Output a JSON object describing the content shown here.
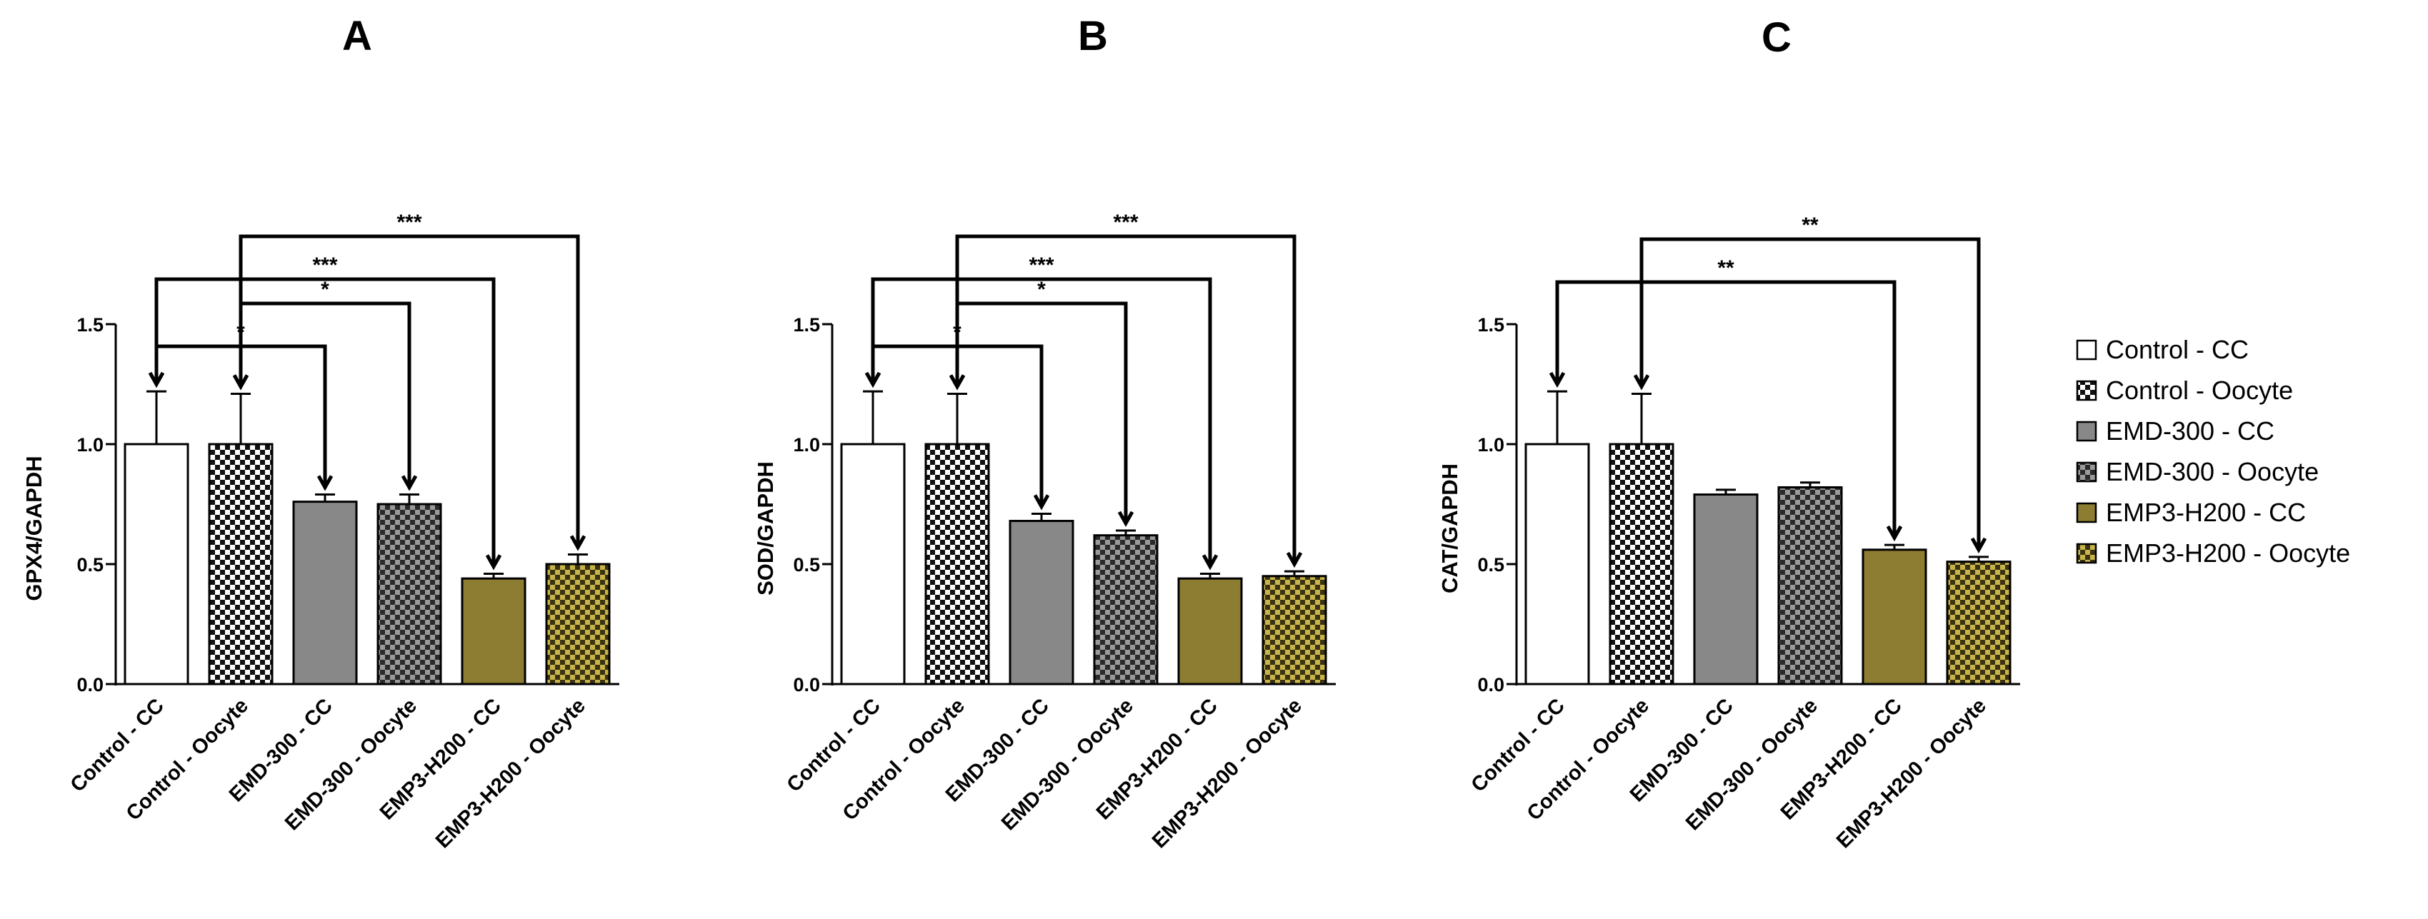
{
  "categories": [
    "Control - CC",
    "Control - Oocyte",
    "EMD-300 - CC",
    "EMD-300 - Oocyte",
    "EMP3-H200 - CC",
    "EMP3-H200 - Oocyte"
  ],
  "series_styles": [
    {
      "name": "Control - CC",
      "fill": "#ffffff",
      "pattern": "none"
    },
    {
      "name": "Control - Oocyte",
      "fill": "#ffffff",
      "pattern": "checker"
    },
    {
      "name": "EMD-300 - CC",
      "fill": "#888888",
      "pattern": "none"
    },
    {
      "name": "EMD-300 - Oocyte",
      "fill": "#888888",
      "pattern": "checker"
    },
    {
      "name": "EMP3-H200 - CC",
      "fill": "#8c7d32",
      "pattern": "none"
    },
    {
      "name": "EMP3-H200 - Oocyte",
      "fill": "#8c7d32",
      "pattern": "checker"
    }
  ],
  "legend": {
    "entries": [
      "Control - CC",
      "Control - Oocyte",
      "EMD-300 - CC",
      "EMD-300 - Oocyte",
      "EMP3-H200 - CC",
      "EMP3-H200 - Oocyte"
    ]
  },
  "chart_data": [
    {
      "type": "bar",
      "panel_label": "A",
      "ylabel": "GPX4/GAPDH",
      "ylim": [
        0,
        1.5
      ],
      "yticks": [
        "0.0",
        "0.5",
        "1.0",
        "1.5"
      ],
      "categories": [
        "Control - CC",
        "Control - Oocyte",
        "EMD-300 - CC",
        "EMD-300 - Oocyte",
        "EMP3-H200 - CC",
        "EMP3-H200 - Oocyte"
      ],
      "values": [
        1.0,
        1.0,
        0.76,
        0.75,
        0.44,
        0.5
      ],
      "errors": [
        0.22,
        0.21,
        0.03,
        0.04,
        0.02,
        0.04
      ],
      "significance": [
        {
          "from": 0,
          "to": 2,
          "label": "*"
        },
        {
          "from": 1,
          "to": 3,
          "label": "*"
        },
        {
          "from": 0,
          "to": 4,
          "label": "***"
        },
        {
          "from": 1,
          "to": 5,
          "label": "***"
        }
      ]
    },
    {
      "type": "bar",
      "panel_label": "B",
      "ylabel": "SOD/GAPDH",
      "ylim": [
        0,
        1.5
      ],
      "yticks": [
        "0.0",
        "0.5",
        "1.0",
        "1.5"
      ],
      "categories": [
        "Control - CC",
        "Control - Oocyte",
        "EMD-300 - CC",
        "EMD-300 - Oocyte",
        "EMP3-H200 - CC",
        "EMP3-H200 - Oocyte"
      ],
      "values": [
        1.0,
        1.0,
        0.68,
        0.62,
        0.44,
        0.45
      ],
      "errors": [
        0.22,
        0.21,
        0.03,
        0.02,
        0.02,
        0.02
      ],
      "significance": [
        {
          "from": 0,
          "to": 2,
          "label": "*"
        },
        {
          "from": 1,
          "to": 3,
          "label": "*"
        },
        {
          "from": 0,
          "to": 4,
          "label": "***"
        },
        {
          "from": 1,
          "to": 5,
          "label": "***"
        }
      ]
    },
    {
      "type": "bar",
      "panel_label": "C",
      "ylabel": "CAT/GAPDH",
      "ylim": [
        0,
        1.5
      ],
      "yticks": [
        "0.0",
        "0.5",
        "1.0",
        "1.5"
      ],
      "categories": [
        "Control - CC",
        "Control - Oocyte",
        "EMD-300 - CC",
        "EMD-300 - Oocyte",
        "EMP3-H200 - CC",
        "EMP3-H200 - Oocyte"
      ],
      "values": [
        1.0,
        1.0,
        0.79,
        0.82,
        0.56,
        0.51
      ],
      "errors": [
        0.22,
        0.21,
        0.02,
        0.02,
        0.02,
        0.02
      ],
      "significance": [
        {
          "from": 0,
          "to": 4,
          "label": "**"
        },
        {
          "from": 1,
          "to": 5,
          "label": "**"
        }
      ]
    }
  ]
}
